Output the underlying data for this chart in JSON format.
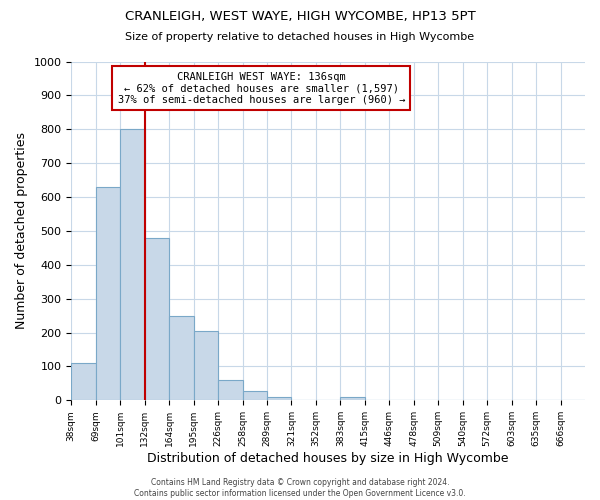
{
  "title": "CRANLEIGH, WEST WAYE, HIGH WYCOMBE, HP13 5PT",
  "subtitle": "Size of property relative to detached houses in High Wycombe",
  "xlabel": "Distribution of detached houses by size in High Wycombe",
  "ylabel": "Number of detached properties",
  "footer_line1": "Contains HM Land Registry data © Crown copyright and database right 2024.",
  "footer_line2": "Contains public sector information licensed under the Open Government Licence v3.0.",
  "bin_labels": [
    "38sqm",
    "69sqm",
    "101sqm",
    "132sqm",
    "164sqm",
    "195sqm",
    "226sqm",
    "258sqm",
    "289sqm",
    "321sqm",
    "352sqm",
    "383sqm",
    "415sqm",
    "446sqm",
    "478sqm",
    "509sqm",
    "540sqm",
    "572sqm",
    "603sqm",
    "635sqm",
    "666sqm"
  ],
  "bar_values": [
    110,
    630,
    800,
    480,
    250,
    205,
    60,
    28,
    10,
    0,
    0,
    10,
    0,
    0,
    0,
    0,
    0,
    0,
    0,
    0,
    0
  ],
  "bar_color": "#c8d8e8",
  "bar_edge_color": "#7aa8c8",
  "highlight_bin_index": 3,
  "vline_color": "#c00000",
  "annotation_title": "CRANLEIGH WEST WAYE: 136sqm",
  "annotation_line1": "← 62% of detached houses are smaller (1,597)",
  "annotation_line2": "37% of semi-detached houses are larger (960) →",
  "annotation_box_color": "#ffffff",
  "annotation_box_edge_color": "#c00000",
  "ylim": [
    0,
    1000
  ],
  "yticks": [
    0,
    100,
    200,
    300,
    400,
    500,
    600,
    700,
    800,
    900,
    1000
  ],
  "background_color": "#ffffff",
  "grid_color": "#c8d8e8"
}
